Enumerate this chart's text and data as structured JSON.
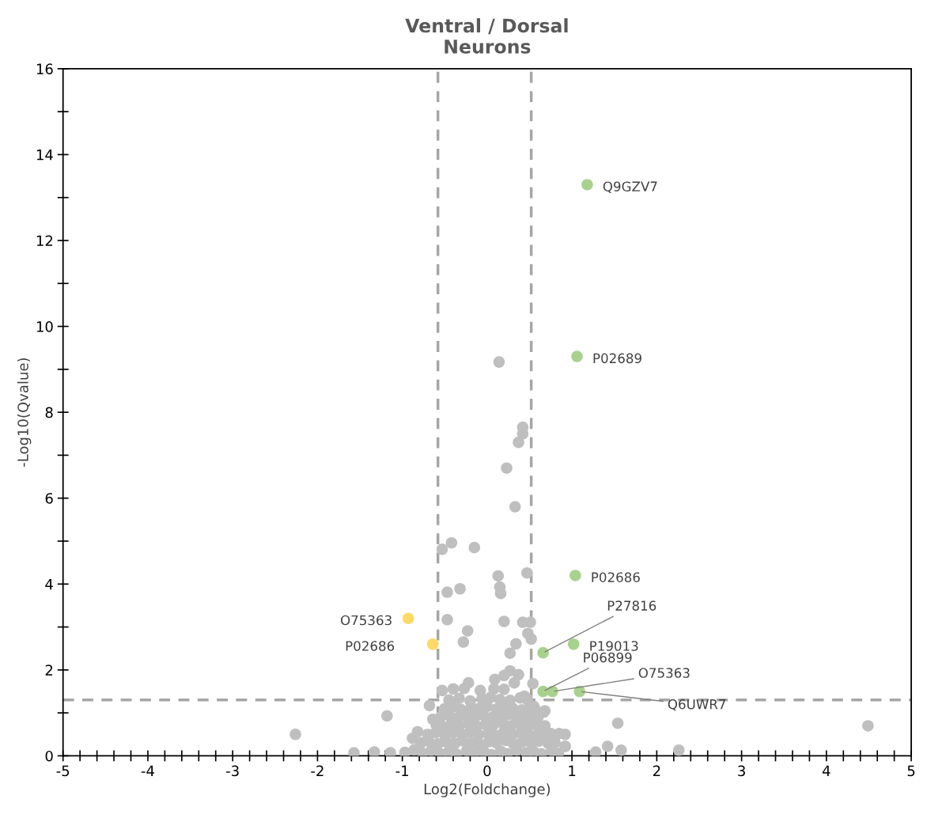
{
  "chart_data": {
    "type": "scatter",
    "title": "Ventral / Dorsal\nNeurons",
    "xlabel": "Log2(Foldchange)",
    "ylabel": "-Log10(Qvalue)",
    "xlim": [
      -5,
      5
    ],
    "ylim": [
      0,
      16
    ],
    "xticks": [
      -5,
      {
        "value": -4.8,
        "label": null
      },
      {
        "value": -4.6,
        "label": null
      },
      {
        "value": -4.4,
        "label": null
      },
      {
        "value": -4.2,
        "label": null
      },
      -4,
      {
        "value": -3.8,
        "label": null
      },
      {
        "value": -3.6,
        "label": null
      },
      {
        "value": -3.4,
        "label": null
      },
      {
        "value": -3.2,
        "label": null
      },
      -3,
      {
        "value": -2.8,
        "label": null
      },
      {
        "value": -2.6,
        "label": null
      },
      {
        "value": -2.4,
        "label": null
      },
      {
        "value": -2.2,
        "label": null
      },
      -2,
      {
        "value": -1.8,
        "label": null
      },
      {
        "value": -1.6,
        "label": null
      },
      {
        "value": -1.4,
        "label": null
      },
      {
        "value": -1.2,
        "label": null
      },
      -1,
      {
        "value": -0.8,
        "label": null
      },
      {
        "value": -0.6,
        "label": null
      },
      {
        "value": -0.4,
        "label": null
      },
      {
        "value": -0.2,
        "label": null
      },
      0,
      {
        "value": 0.2,
        "label": null
      },
      {
        "value": 0.4,
        "label": null
      },
      {
        "value": 0.6,
        "label": null
      },
      {
        "value": 0.8,
        "label": null
      },
      1,
      {
        "value": 1.2,
        "label": null
      },
      {
        "value": 1.4,
        "label": null
      },
      {
        "value": 1.6,
        "label": null
      },
      {
        "value": 1.8,
        "label": null
      },
      2,
      {
        "value": 2.2,
        "label": null
      },
      {
        "value": 2.4,
        "label": null
      },
      {
        "value": 2.6,
        "label": null
      },
      {
        "value": 2.8,
        "label": null
      },
      3,
      {
        "value": 3.2,
        "label": null
      },
      {
        "value": 3.4,
        "label": null
      },
      {
        "value": 3.6,
        "label": null
      },
      {
        "value": 3.8,
        "label": null
      },
      4,
      {
        "value": 4.2,
        "label": null
      },
      {
        "value": 4.4,
        "label": null
      },
      {
        "value": 4.6,
        "label": null
      },
      {
        "value": 4.8,
        "label": null
      },
      5
    ],
    "yticks": [
      0,
      {
        "value": 1,
        "label": null
      },
      2,
      {
        "value": 3,
        "label": null
      },
      4,
      {
        "value": 5,
        "label": null
      },
      6,
      {
        "value": 7,
        "label": null
      },
      8,
      {
        "value": 9,
        "label": null
      },
      10,
      {
        "value": 11,
        "label": null
      },
      12,
      {
        "value": 13,
        "label": null
      },
      14,
      {
        "value": 15,
        "label": null
      },
      16
    ],
    "grid": false,
    "legend": false,
    "marker": "circle",
    "ref_lines": [
      {
        "axis": "x",
        "value": -0.58,
        "color": "#a6a6a6",
        "line_style": "dashed"
      },
      {
        "axis": "x",
        "value": 0.52,
        "color": "#a6a6a6",
        "line_style": "dashed"
      },
      {
        "axis": "y",
        "value": 1.3,
        "color": "#a6a6a6",
        "line_style": "dashed"
      }
    ],
    "series": [
      {
        "color": "#bfbfbf",
        "x": [
          0.14,
          0.42,
          0.42,
          0.37,
          0.23,
          0.33,
          -0.53,
          -0.42,
          -0.15,
          0.13,
          0.47,
          0.15,
          0.16,
          -0.47,
          -0.32,
          -0.47,
          0.2,
          0.42,
          0.51,
          -0.23,
          0.48,
          0.52,
          -0.28,
          0.34,
          0.27,
          -1.18,
          -2.26,
          1.54,
          0.67,
          4.49,
          2.26,
          1.28,
          1.42,
          1.58,
          0.92,
          -1.57,
          -1.33,
          -1.14,
          -0.68,
          -0.64,
          -0.82,
          -0.88,
          -0.22,
          0.27,
          0.37,
          0.2,
          0.09,
          0.32,
          0.54,
          -0.53,
          -0.4,
          -0.27,
          -0.08,
          0.08,
          0.2,
          0.44,
          0.55,
          0.68,
          0.85,
          0.92,
          0.92,
          -0.97,
          -0.86,
          -0.76,
          -0.66,
          -0.55,
          -0.45,
          -0.36,
          -0.24,
          -0.15,
          -0.04,
          0.05,
          0.16,
          0.24,
          0.35,
          0.46,
          0.55,
          0.64,
          0.76,
          0.84,
          -0.78,
          -0.69,
          -0.58,
          -0.49,
          -0.38,
          -0.29,
          -0.18,
          -0.09,
          0.02,
          0.11,
          0.22,
          0.31,
          0.41,
          0.52,
          0.61,
          0.72,
          0.8,
          -0.7,
          -0.61,
          -0.5,
          -0.41,
          -0.3,
          -0.21,
          -0.1,
          0.01,
          0.1,
          0.19,
          0.3,
          0.4,
          0.49,
          0.6,
          0.69,
          0.75,
          -0.6,
          -0.52,
          -0.42,
          -0.33,
          -0.22,
          -0.12,
          -0.02,
          0.07,
          0.18,
          0.28,
          0.38,
          0.47,
          0.58,
          0.68,
          -0.55,
          -0.45,
          -0.35,
          -0.26,
          -0.14,
          -0.05,
          0.05,
          0.14,
          0.24,
          0.34,
          0.45,
          0.53,
          0.6,
          -0.5,
          -0.4,
          -0.31,
          -0.19,
          -0.1,
          0.0,
          0.11,
          0.21,
          0.3,
          0.41,
          0.5,
          0.56,
          -0.45,
          -0.33,
          -0.2,
          -0.06,
          0.04,
          0.15,
          0.27,
          0.39,
          0.47
        ],
        "values": [
          9.17,
          7.65,
          7.5,
          7.3,
          6.7,
          5.8,
          4.81,
          4.96,
          4.85,
          4.19,
          4.26,
          3.93,
          3.78,
          3.81,
          3.89,
          3.17,
          3.13,
          3.11,
          3.11,
          2.91,
          2.85,
          2.72,
          2.65,
          2.61,
          2.39,
          0.93,
          0.5,
          0.76,
          1.02,
          0.7,
          0.13,
          0.09,
          0.22,
          0.13,
          0.22,
          0.07,
          0.09,
          0.07,
          1.17,
          0.85,
          0.56,
          0.41,
          1.7,
          1.98,
          1.89,
          1.87,
          1.78,
          1.7,
          1.68,
          1.52,
          1.56,
          1.57,
          1.52,
          1.56,
          1.55,
          1.39,
          1.15,
          1.05,
          0.52,
          0.5,
          0.22,
          0.08,
          0.14,
          0.06,
          0.12,
          0.05,
          0.1,
          0.04,
          0.12,
          0.06,
          0.1,
          0.03,
          0.11,
          0.05,
          0.13,
          0.07,
          0.1,
          0.05,
          0.12,
          0.06,
          0.3,
          0.34,
          0.28,
          0.33,
          0.29,
          0.35,
          0.31,
          0.27,
          0.33,
          0.3,
          0.36,
          0.28,
          0.32,
          0.3,
          0.34,
          0.29,
          0.31,
          0.5,
          0.54,
          0.48,
          0.53,
          0.5,
          0.55,
          0.49,
          0.52,
          0.47,
          0.54,
          0.5,
          0.53,
          0.48,
          0.51,
          0.46,
          0.52,
          0.72,
          0.68,
          0.74,
          0.7,
          0.75,
          0.69,
          0.73,
          0.71,
          0.76,
          0.7,
          0.74,
          0.68,
          0.72,
          0.7,
          0.9,
          0.94,
          0.88,
          0.93,
          0.91,
          0.95,
          0.89,
          0.92,
          0.96,
          0.9,
          0.93,
          0.87,
          0.9,
          1.1,
          1.14,
          1.08,
          1.12,
          1.1,
          1.15,
          1.09,
          1.13,
          1.11,
          1.07,
          1.12,
          1.1,
          1.3,
          1.34,
          1.28,
          1.33,
          1.36,
          1.31,
          1.29,
          1.35,
          1.32
        ]
      },
      {
        "color": "#ffd966",
        "x": [
          -0.93,
          -0.64
        ],
        "values": [
          3.2,
          2.6
        ]
      },
      {
        "color": "#a9d18e",
        "x": [
          1.18,
          1.06,
          1.04,
          1.02,
          0.66,
          0.66,
          0.77,
          1.09
        ],
        "values": [
          13.3,
          9.3,
          4.2,
          2.6,
          2.4,
          1.5,
          1.5,
          1.5
        ]
      }
    ],
    "annotations": [
      {
        "text": "O75363",
        "x": -0.93,
        "y": 3.2
      },
      {
        "text": "P02686",
        "x": -0.64,
        "y": 2.6
      },
      {
        "text": "Q9GZV7",
        "x": 1.18,
        "y": 13.3
      },
      {
        "text": "P02689",
        "x": 1.06,
        "y": 9.3
      },
      {
        "text": "P02686",
        "x": 1.04,
        "y": 4.2
      },
      {
        "text": "P19013",
        "x": 1.02,
        "y": 2.6
      },
      {
        "text": "P27816",
        "x": 0.66,
        "y": 2.4
      },
      {
        "text": "P06899",
        "x": 0.66,
        "y": 1.5
      },
      {
        "text": "O75363",
        "x": 0.77,
        "y": 1.5
      },
      {
        "text": "Q6UWR7",
        "x": 1.09,
        "y": 1.5
      }
    ]
  }
}
